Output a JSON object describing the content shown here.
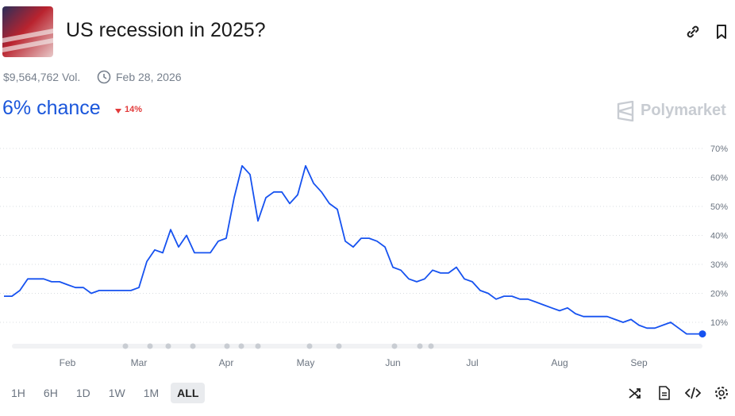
{
  "header": {
    "title": "US recession in 2025?",
    "volume": "$9,564,762 Vol.",
    "end_date": "Feb 28, 2026",
    "chance": "6% chance",
    "change": "14%",
    "brand": "Polymarket"
  },
  "timeframes": [
    "1H",
    "6H",
    "1D",
    "1W",
    "1M",
    "ALL"
  ],
  "active_timeframe": 5,
  "chart_data": {
    "type": "line",
    "color": "#1652f0",
    "grid": true,
    "categories": [
      null,
      null,
      null,
      null,
      null,
      null,
      null,
      null,
      "Feb",
      null,
      null,
      null,
      null,
      null,
      null,
      null,
      null,
      "Mar",
      null,
      null,
      null,
      null,
      null,
      null,
      null,
      null,
      null,
      null,
      "Apr",
      null,
      null,
      null,
      null,
      null,
      null,
      null,
      null,
      null,
      "May",
      null,
      null,
      null,
      null,
      null,
      null,
      null,
      null,
      null,
      null,
      "Jun",
      null,
      null,
      null,
      null,
      null,
      null,
      null,
      null,
      null,
      "Jul",
      null,
      null,
      null,
      null,
      null,
      null,
      null,
      null,
      null,
      null,
      "Aug",
      null,
      null,
      null,
      null,
      null,
      null,
      null,
      null,
      null,
      "Sep",
      null,
      null,
      null,
      null,
      null,
      null,
      null,
      null
    ],
    "values": [
      19,
      19,
      21,
      25,
      25,
      25,
      24,
      24,
      23,
      22,
      22,
      20,
      21,
      21,
      21,
      21,
      21,
      22,
      31,
      35,
      34,
      42,
      36,
      40,
      34,
      34,
      34,
      38,
      39,
      53,
      64,
      61,
      45,
      53,
      55,
      55,
      51,
      54,
      64,
      58,
      55,
      51,
      49,
      38,
      36,
      39,
      39,
      38,
      36,
      29,
      28,
      25,
      24,
      25,
      28,
      27,
      27,
      29,
      25,
      24,
      21,
      20,
      18,
      19,
      19,
      18,
      18,
      17,
      16,
      15,
      14,
      15,
      13,
      12,
      12,
      12,
      12,
      11,
      10,
      11,
      9,
      8,
      8,
      9,
      10,
      8,
      6,
      6,
      6
    ],
    "ylim": [
      0,
      72
    ],
    "yticks": [
      {
        "value": 10,
        "label": "10%"
      },
      {
        "value": 20,
        "label": "20%"
      },
      {
        "value": 30,
        "label": "30%"
      },
      {
        "value": 40,
        "label": "40%"
      },
      {
        "value": 50,
        "label": "50%"
      },
      {
        "value": 60,
        "label": "60%"
      },
      {
        "value": 70,
        "label": "70%"
      }
    ]
  }
}
